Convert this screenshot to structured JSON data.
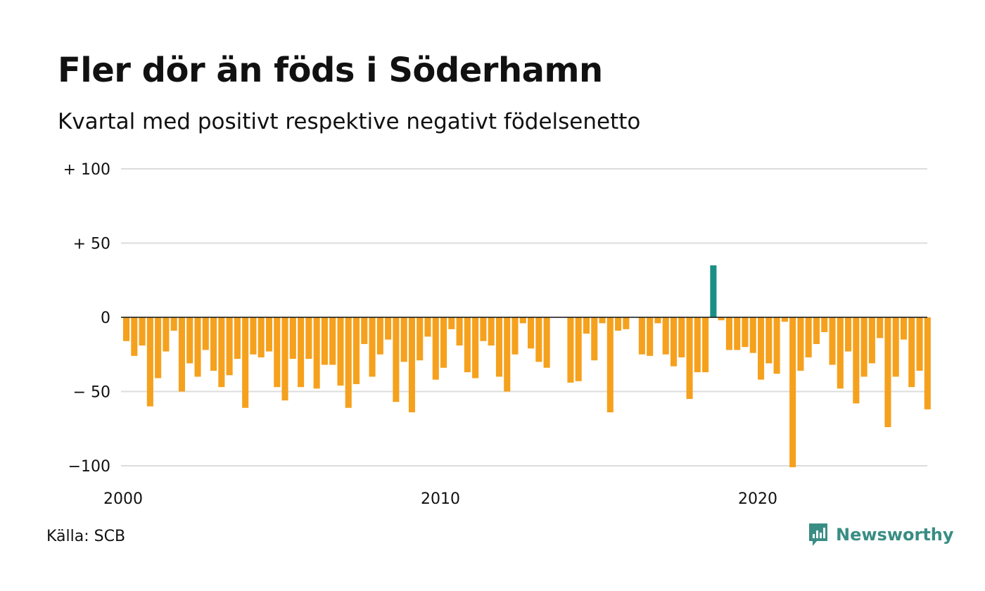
{
  "chart_data": {
    "type": "bar",
    "title": "Fler dör än föds i Söderhamn",
    "subtitle": "Kvartal med positivt respektive negativt födelsenetto",
    "x_start": 2000,
    "x_step": 0.25,
    "x_tick_values": [
      2000,
      2010,
      2020
    ],
    "x_tick_labels": [
      "2000",
      "2010",
      "2020"
    ],
    "y_ticks": [
      100,
      50,
      0,
      -50,
      -100
    ],
    "y_tick_labels": [
      "+ 100",
      "+  50",
      "0",
      "− 50",
      "−100"
    ],
    "ylim": [
      -100,
      100
    ],
    "grid": true,
    "positive_color": "#1b8f85",
    "negative_color": "#f5a11d",
    "values": [
      -16,
      -26,
      -19,
      -60,
      -41,
      -23,
      -9,
      -50,
      -31,
      -40,
      -22,
      -36,
      -47,
      -39,
      -28,
      -61,
      -25,
      -27,
      -23,
      -47,
      -56,
      -28,
      -47,
      -28,
      -48,
      -32,
      -32,
      -46,
      -61,
      -45,
      -18,
      -40,
      -25,
      -15,
      -57,
      -30,
      -64,
      -29,
      -13,
      -42,
      -34,
      -8,
      -19,
      -37,
      -41,
      -16,
      -19,
      -40,
      -50,
      -25,
      -4,
      -21,
      -30,
      -34,
      0,
      0,
      -44,
      -43,
      -11,
      -29,
      -4,
      -64,
      -9,
      -8,
      0,
      -25,
      -26,
      -4,
      -25,
      -33,
      -27,
      -55,
      -37,
      -37,
      35,
      -2,
      -22,
      -22,
      -20,
      -24,
      -42,
      -31,
      -38,
      -3,
      -101,
      -36,
      -27,
      -18,
      -10,
      -32,
      -48,
      -23,
      -58,
      -40,
      -31,
      -14,
      -74,
      -40,
      -15,
      -47,
      -36,
      -62
    ]
  },
  "footer": {
    "source": "Källa: SCB",
    "brand": "Newsworthy"
  }
}
